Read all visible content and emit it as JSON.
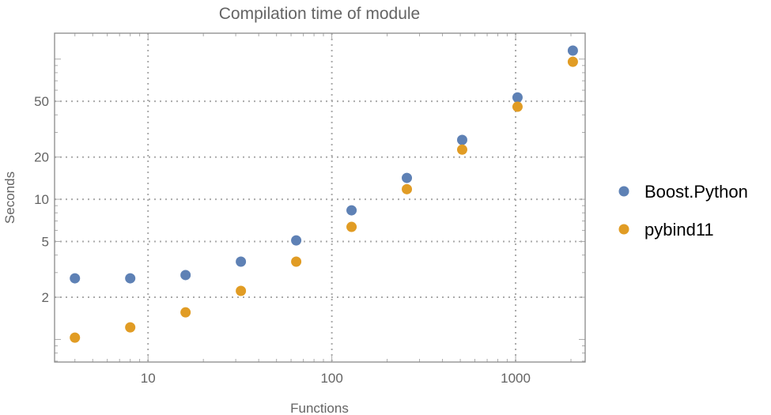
{
  "chart_data": {
    "type": "scatter",
    "title": "Compilation time of module",
    "xlabel": "Functions",
    "ylabel": "Seconds",
    "xscale": "log",
    "yscale": "log",
    "xlim": [
      3.1,
      2390
    ],
    "ylim": [
      0.69,
      153
    ],
    "x_ticks": [
      10,
      100,
      1000
    ],
    "x_tick_labels": [
      "10",
      "100",
      "1000"
    ],
    "y_ticks": [
      2,
      5,
      10,
      20,
      50
    ],
    "y_tick_labels": [
      "2",
      "5",
      "10",
      "20",
      "50"
    ],
    "grid": true,
    "legend_position": "right",
    "x": [
      4,
      8,
      16,
      32,
      64,
      128,
      256,
      512,
      1024,
      2048
    ],
    "series": [
      {
        "name": "Boost.Python",
        "color": "#5E81B5",
        "values": [
          2.73,
          2.73,
          2.88,
          3.59,
          5.09,
          8.34,
          14.2,
          26.5,
          53.3,
          115
        ]
      },
      {
        "name": "pybind11",
        "color": "#E19C24",
        "values": [
          1.03,
          1.22,
          1.56,
          2.22,
          3.59,
          6.35,
          11.8,
          22.6,
          45.7,
          95.7
        ]
      }
    ]
  }
}
